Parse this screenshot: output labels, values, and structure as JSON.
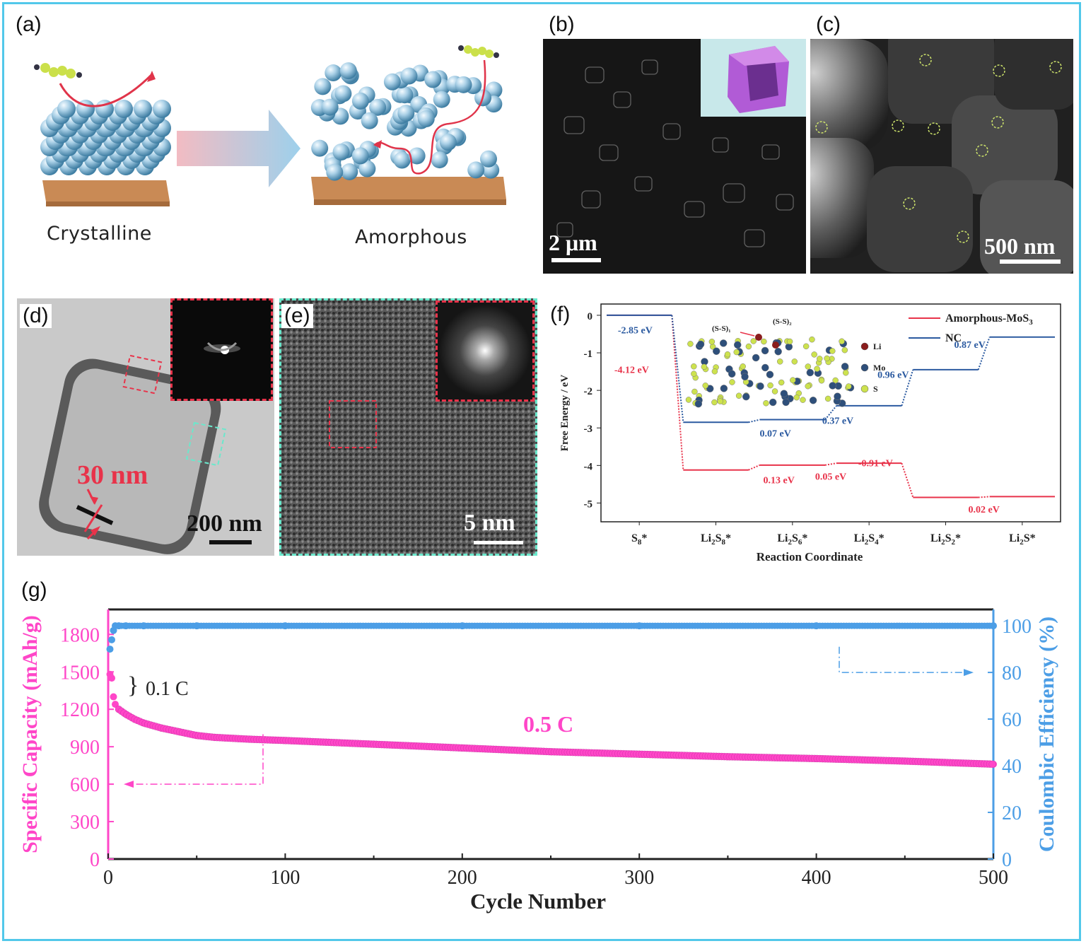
{
  "panels": {
    "a": {
      "label": "(a)",
      "left_caption": "Crystalline",
      "right_caption": "Amorphous"
    },
    "b": {
      "label": "(b)",
      "scale_bar": "2 μm"
    },
    "c": {
      "label": "(c)",
      "scale_bar": "500 nm"
    },
    "d": {
      "label": "(d)",
      "thickness": "30 nm",
      "scale_bar": "200 nm"
    },
    "e": {
      "label": "(e)",
      "scale_bar": "5 nm"
    },
    "f": {
      "label": "(f)",
      "inset_labels": {
        "ss1": "(S-S)₁",
        "ss2": "(S-S)₂",
        "li": "Li",
        "mo": "Mo",
        "s": "S"
      }
    },
    "g": {
      "label": "(g)",
      "rate_low": "0.1 C",
      "rate_high": "0.5 C"
    }
  },
  "chart_data": [
    {
      "type": "line",
      "panel": "f",
      "xlabel": "Reaction Coordinate",
      "ylabel": "Free Energy / eV",
      "categories": [
        "S8*",
        "Li2S8*",
        "Li2S6*",
        "Li2S4*",
        "Li2S2*",
        "Li2S*"
      ],
      "ylim": [
        -5.5,
        0.3
      ],
      "yticks": [
        0,
        -1,
        -2,
        -3,
        -4,
        -5
      ],
      "legend_position": "top-right",
      "series": [
        {
          "name": "Amorphous-MoS3",
          "color": "#e8334a",
          "values": [
            0,
            -4.12,
            -3.99,
            -3.94,
            -4.85,
            -4.83
          ],
          "step_labels": [
            "-4.12 eV",
            "0.13 eV",
            "0.05 eV",
            "-0.91 eV",
            "0.02 eV"
          ]
        },
        {
          "name": "NC",
          "color": "#2b5aa0",
          "values": [
            0,
            -2.85,
            -2.78,
            -2.41,
            -1.45,
            -0.58
          ],
          "step_labels": [
            "-2.85 eV",
            "0.07 eV",
            "0.37 eV",
            "0.96 eV",
            "0.87 eV"
          ]
        }
      ]
    },
    {
      "type": "scatter",
      "panel": "g",
      "xlabel": "Cycle Number",
      "ylabel_left": "Specific Capacity (mAh/g)",
      "ylabel_right": "Coulombic Efficiency (%)",
      "xlim": [
        0,
        500
      ],
      "xticks": [
        0,
        100,
        200,
        300,
        400,
        500
      ],
      "ylim_left": [
        0,
        2000
      ],
      "yticks_left": [
        0,
        300,
        600,
        900,
        1200,
        1500,
        1800
      ],
      "ylim_right": [
        0,
        107
      ],
      "yticks_right": [
        0,
        20,
        40,
        60,
        80,
        100
      ],
      "capacity": {
        "color": "#ff46c8",
        "x": [
          1,
          2,
          3,
          4,
          6,
          10,
          15,
          20,
          30,
          40,
          50,
          60,
          80,
          100,
          150,
          200,
          250,
          300,
          350,
          400,
          450,
          500
        ],
        "y": [
          1480,
          1450,
          1300,
          1240,
          1200,
          1160,
          1120,
          1090,
          1050,
          1020,
          990,
          975,
          960,
          950,
          920,
          890,
          860,
          840,
          820,
          805,
          785,
          760
        ]
      },
      "efficiency": {
        "color": "#4c9ee6",
        "x": [
          1,
          2,
          3,
          4,
          6,
          10,
          20,
          50,
          100,
          200,
          300,
          400,
          500
        ],
        "y": [
          90,
          94,
          98,
          100,
          100,
          100,
          100,
          100,
          100,
          100,
          100,
          100,
          100
        ]
      }
    }
  ]
}
